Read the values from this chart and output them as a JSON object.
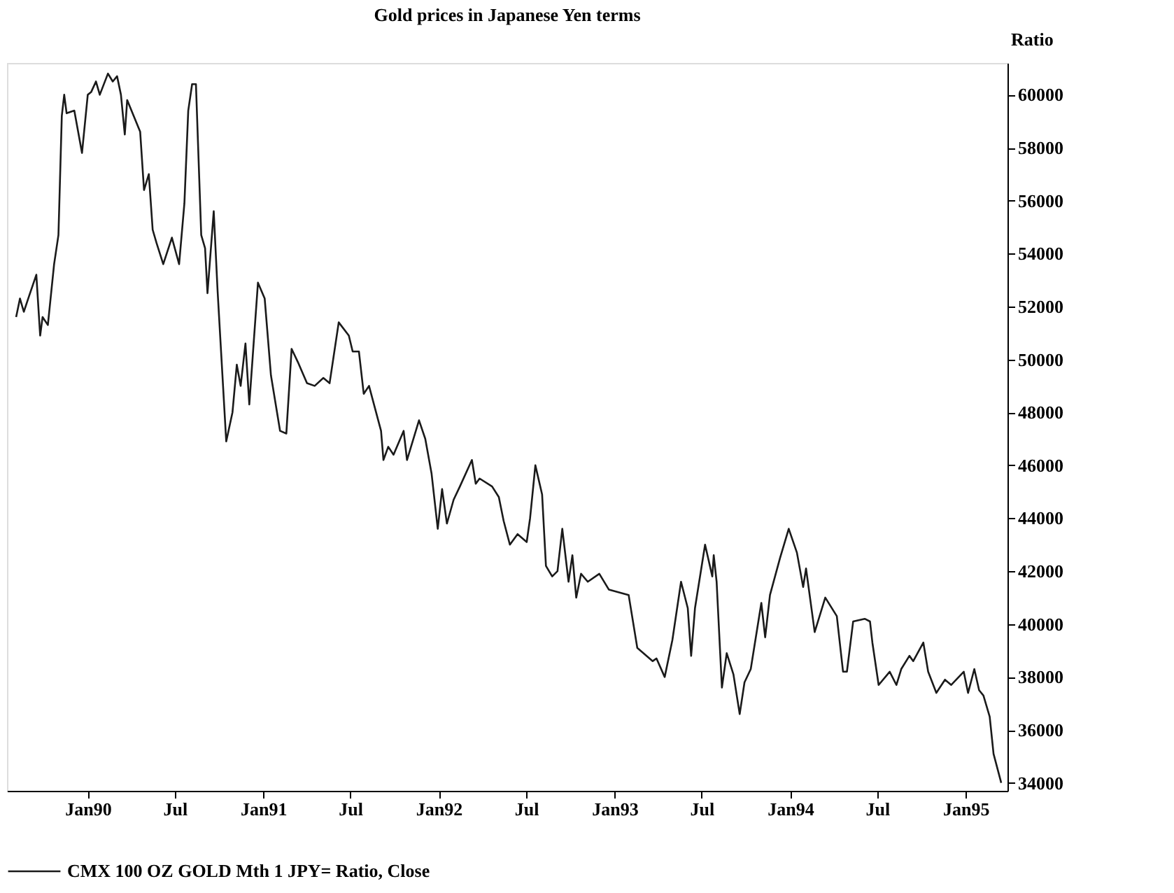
{
  "chart_data": {
    "type": "line",
    "title": "Gold prices in Japanese Yen terms",
    "ylabel": "Ratio",
    "x": [
      "1989-08-05",
      "1989-08-13",
      "1989-08-21",
      "1989-09-01",
      "1989-09-16",
      "1989-09-24",
      "1989-09-29",
      "1989-10-10",
      "1989-10-23",
      "1989-11-01",
      "1989-11-08",
      "1989-11-13",
      "1989-11-18",
      "1989-12-04",
      "1989-12-20",
      "1990-01-01",
      "1990-01-08",
      "1990-01-18",
      "1990-01-26",
      "1990-02-12",
      "1990-02-22",
      "1990-03-03",
      "1990-03-11",
      "1990-03-19",
      "1990-03-24",
      "1990-04-20",
      "1990-04-28",
      "1990-05-08",
      "1990-05-16",
      "1990-05-24",
      "1990-06-07",
      "1990-06-25",
      "1990-07-10",
      "1990-07-21",
      "1990-07-29",
      "1990-08-06",
      "1990-08-14",
      "1990-08-25",
      "1990-09-02",
      "1990-09-07",
      "1990-09-20",
      "1990-09-28",
      "1990-10-16",
      "1990-10-29",
      "1990-11-07",
      "1990-11-15",
      "1990-11-25",
      "1990-12-03",
      "1990-12-21",
      "1991-01-04",
      "1991-01-17",
      "1991-02-05",
      "1991-02-18",
      "1991-03-01",
      "1991-03-14",
      "1991-04-02",
      "1991-04-18",
      "1991-05-06",
      "1991-05-19",
      "1991-06-07",
      "1991-06-28",
      "1991-07-06",
      "1991-07-19",
      "1991-07-29",
      "1991-08-09",
      "1991-09-03",
      "1991-09-08",
      "1991-09-18",
      "1991-09-29",
      "1991-10-20",
      "1991-10-27",
      "1991-11-21",
      "1991-12-04",
      "1991-12-17",
      "1991-12-30",
      "1992-01-08",
      "1992-01-18",
      "1992-02-01",
      "1992-02-14",
      "1992-03-10",
      "1992-03-18",
      "1992-03-26",
      "1992-04-21",
      "1992-05-05",
      "1992-05-15",
      "1992-05-28",
      "1992-06-13",
      "1992-07-02",
      "1992-07-09",
      "1992-07-20",
      "1992-08-03",
      "1992-08-11",
      "1992-08-24",
      "1992-09-04",
      "1992-09-14",
      "1992-09-27",
      "1992-10-05",
      "1992-10-13",
      "1992-10-23",
      "1992-11-06",
      "1992-11-30",
      "1992-12-20",
      "1993-01-30",
      "1993-02-17",
      "1993-03-21",
      "1993-03-29",
      "1993-04-15",
      "1993-05-01",
      "1993-05-19",
      "1993-06-02",
      "1993-06-09",
      "1993-06-17",
      "1993-07-08",
      "1993-07-23",
      "1993-07-26",
      "1993-08-01",
      "1993-08-12",
      "1993-08-22",
      "1993-09-05",
      "1993-09-18",
      "1993-09-28",
      "1993-10-11",
      "1993-11-02",
      "1993-11-10",
      "1993-11-20",
      "1993-12-11",
      "1993-12-29",
      "1994-01-15",
      "1994-01-28",
      "1994-02-03",
      "1994-02-21",
      "1994-03-15",
      "1994-04-08",
      "1994-04-21",
      "1994-04-29",
      "1994-05-12",
      "1994-06-05",
      "1994-06-16",
      "1994-06-21",
      "1994-07-04",
      "1994-07-27",
      "1994-08-10",
      "1994-08-20",
      "1994-09-06",
      "1994-09-14",
      "1994-10-05",
      "1994-10-15",
      "1994-11-01",
      "1994-11-19",
      "1994-12-02",
      "1994-12-28",
      "1995-01-06",
      "1995-01-19",
      "1995-01-29",
      "1995-02-07",
      "1995-02-20",
      "1995-02-28",
      "1995-03-16"
    ],
    "series": [
      {
        "name": "CMX 100 OZ GOLD Mth 1 JPY= Ratio, Close",
        "color": "#1a1a1a",
        "values": [
          51600,
          52300,
          51800,
          52400,
          53200,
          50900,
          51600,
          51300,
          53600,
          54700,
          59200,
          60000,
          59300,
          59400,
          57800,
          60000,
          60100,
          60500,
          60000,
          60800,
          60500,
          60700,
          60000,
          58500,
          59800,
          58600,
          56400,
          57000,
          54900,
          54400,
          53600,
          54600,
          53600,
          55900,
          59400,
          60400,
          60400,
          54700,
          54200,
          52500,
          55600,
          52600,
          46900,
          48000,
          49800,
          49000,
          50600,
          48300,
          52900,
          52300,
          49400,
          47300,
          47200,
          50400,
          49900,
          49100,
          49000,
          49300,
          49100,
          51400,
          50900,
          50300,
          50300,
          48700,
          49000,
          47300,
          46200,
          46700,
          46400,
          47300,
          46200,
          47700,
          47000,
          45700,
          43600,
          45100,
          43800,
          44700,
          45200,
          46200,
          45300,
          45500,
          45200,
          44800,
          43900,
          43000,
          43400,
          43100,
          44000,
          46000,
          44900,
          42200,
          41800,
          42000,
          43600,
          41600,
          42600,
          41000,
          41900,
          41600,
          41900,
          41300,
          41100,
          39100,
          38600,
          38700,
          38000,
          39400,
          41600,
          40600,
          38800,
          40600,
          43000,
          41800,
          42600,
          41600,
          37600,
          38900,
          38100,
          36600,
          37800,
          38300,
          40800,
          39500,
          41100,
          42500,
          43600,
          42700,
          41400,
          42100,
          39700,
          41000,
          40300,
          38200,
          38200,
          40100,
          40200,
          40100,
          39300,
          37700,
          38200,
          37700,
          38300,
          38800,
          38600,
          39300,
          38200,
          37400,
          37900,
          37700,
          38200,
          37400,
          38300,
          37500,
          37300,
          36500,
          35100,
          34000
        ]
      }
    ],
    "xlim": [
      "1989-07-17",
      "1995-03-29"
    ],
    "xticks": [
      {
        "value": "1990-01-01",
        "label": "Jan90"
      },
      {
        "value": "1990-07-01",
        "label": "Jul"
      },
      {
        "value": "1991-01-01",
        "label": "Jan91"
      },
      {
        "value": "1991-07-01",
        "label": "Jul"
      },
      {
        "value": "1992-01-01",
        "label": "Jan92"
      },
      {
        "value": "1992-07-01",
        "label": "Jul"
      },
      {
        "value": "1993-01-01",
        "label": "Jan93"
      },
      {
        "value": "1993-07-01",
        "label": "Jul"
      },
      {
        "value": "1994-01-01",
        "label": "Jan94"
      },
      {
        "value": "1994-07-01",
        "label": "Jul"
      },
      {
        "value": "1995-01-01",
        "label": "Jan95"
      }
    ],
    "ylim": [
      33700,
      61200
    ],
    "yticks": [
      34000,
      36000,
      38000,
      40000,
      42000,
      44000,
      46000,
      48000,
      50000,
      52000,
      54000,
      56000,
      58000,
      60000
    ],
    "grid": false,
    "legend": "bottom",
    "marker": "none",
    "line_style": "solid"
  }
}
